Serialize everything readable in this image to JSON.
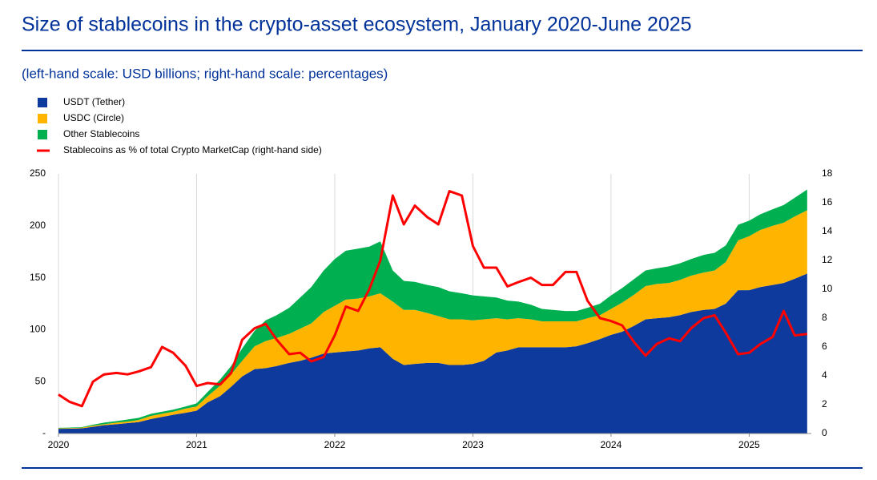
{
  "chart_data": {
    "type": "stacked-area-line",
    "title": "Size of stablecoins in the crypto-asset ecosystem, January 2020-June 2025",
    "subtitle": "(left-hand scale: USD billions; right-hand scale: percentages)",
    "x": [
      2020.0,
      2020.08,
      2020.17,
      2020.25,
      2020.33,
      2020.42,
      2020.5,
      2020.58,
      2020.67,
      2020.75,
      2020.83,
      2020.92,
      2021.0,
      2021.08,
      2021.17,
      2021.25,
      2021.33,
      2021.42,
      2021.5,
      2021.58,
      2021.67,
      2021.75,
      2021.83,
      2021.92,
      2022.0,
      2022.08,
      2022.17,
      2022.25,
      2022.33,
      2022.42,
      2022.5,
      2022.58,
      2022.67,
      2022.75,
      2022.83,
      2022.92,
      2023.0,
      2023.08,
      2023.17,
      2023.25,
      2023.33,
      2023.42,
      2023.5,
      2023.58,
      2023.67,
      2023.75,
      2023.83,
      2023.92,
      2024.0,
      2024.08,
      2024.17,
      2024.25,
      2024.33,
      2024.42,
      2024.5,
      2024.58,
      2024.67,
      2024.75,
      2024.83,
      2024.92,
      2025.0,
      2025.08,
      2025.17,
      2025.25,
      2025.33,
      2025.42
    ],
    "series": [
      {
        "name": "USDT (Tether)",
        "color": "#0d3a9c",
        "values": [
          4.5,
          4.6,
          5,
          6.5,
          8,
          9,
          10,
          11,
          14,
          16,
          18,
          20,
          22,
          30,
          36,
          45,
          55,
          62,
          63,
          65,
          68,
          70,
          73,
          77,
          78,
          79,
          80,
          82,
          83,
          72,
          66,
          67,
          68,
          68,
          66,
          66,
          67,
          70,
          78,
          80,
          83,
          83,
          83,
          83,
          83,
          84,
          87,
          91,
          95,
          98,
          104,
          110,
          111,
          112,
          114,
          117,
          119,
          120,
          125,
          138,
          138,
          141,
          143,
          145,
          149,
          154
        ]
      },
      {
        "name": "USDC (Circle)",
        "color": "#ffb400",
        "values": [
          0.5,
          0.6,
          0.7,
          1,
          1,
          1.5,
          1.5,
          2,
          3,
          3,
          3,
          4,
          4,
          6,
          10,
          12,
          15,
          22,
          26,
          27,
          28,
          31,
          33,
          40,
          45,
          50,
          50,
          50,
          52,
          55,
          53,
          52,
          48,
          45,
          44,
          44,
          42,
          40,
          33,
          30,
          28,
          27,
          25,
          25,
          25,
          24,
          24,
          23,
          25,
          28,
          30,
          32,
          33,
          33,
          34,
          35,
          36,
          37,
          40,
          48,
          52,
          55,
          57,
          58,
          60,
          61
        ]
      },
      {
        "name": "Other Stablecoins",
        "color": "#00b050",
        "values": [
          0.5,
          0.5,
          0.5,
          1,
          1.5,
          1.5,
          2,
          2,
          2,
          2,
          2,
          2,
          3,
          4,
          6,
          8,
          12,
          15,
          20,
          22,
          25,
          30,
          35,
          40,
          45,
          47,
          48,
          48,
          50,
          30,
          28,
          27,
          27,
          28,
          27,
          25,
          24,
          22,
          20,
          18,
          16,
          14,
          12,
          11,
          10,
          10,
          10,
          11,
          13,
          14,
          15,
          15,
          15,
          16,
          16,
          16,
          17,
          17,
          16,
          15,
          15,
          15,
          16,
          17,
          18,
          20
        ]
      },
      {
        "name": "Stablecoins as % of total Crypto MarketCap (right-hand side)",
        "color": "#ff0000",
        "axis": "y2",
        "values": [
          2.7,
          2.2,
          1.9,
          3.6,
          4.1,
          4.2,
          4.1,
          4.3,
          4.6,
          6.0,
          5.6,
          4.7,
          3.3,
          3.5,
          3.4,
          4.2,
          6.5,
          7.3,
          7.6,
          6.5,
          5.5,
          5.6,
          5.0,
          5.3,
          6.8,
          8.8,
          8.5,
          10.0,
          12.0,
          16.5,
          14.5,
          15.8,
          15.0,
          14.5,
          16.8,
          16.5,
          13.0,
          11.5,
          11.5,
          10.2,
          10.5,
          10.8,
          10.3,
          10.3,
          11.2,
          11.2,
          9.2,
          8.0,
          7.8,
          7.5,
          6.3,
          5.4,
          6.2,
          6.6,
          6.4,
          7.3,
          8.0,
          8.2,
          7.0,
          5.5,
          5.6,
          6.2,
          6.7,
          8.5,
          6.8,
          6.9
        ]
      }
    ],
    "xlim": [
      2020,
      2025.45
    ],
    "xticks": [
      2020,
      2021,
      2022,
      2023,
      2024,
      2025
    ],
    "ylim": [
      0,
      250
    ],
    "yticks": [
      {
        "value": 0,
        "label": "-"
      },
      50,
      100,
      150,
      200,
      250
    ],
    "y2lim": [
      0,
      18
    ],
    "y2ticks": [
      0,
      2,
      4,
      6,
      8,
      10,
      12,
      14,
      16,
      18
    ],
    "grid": true
  }
}
